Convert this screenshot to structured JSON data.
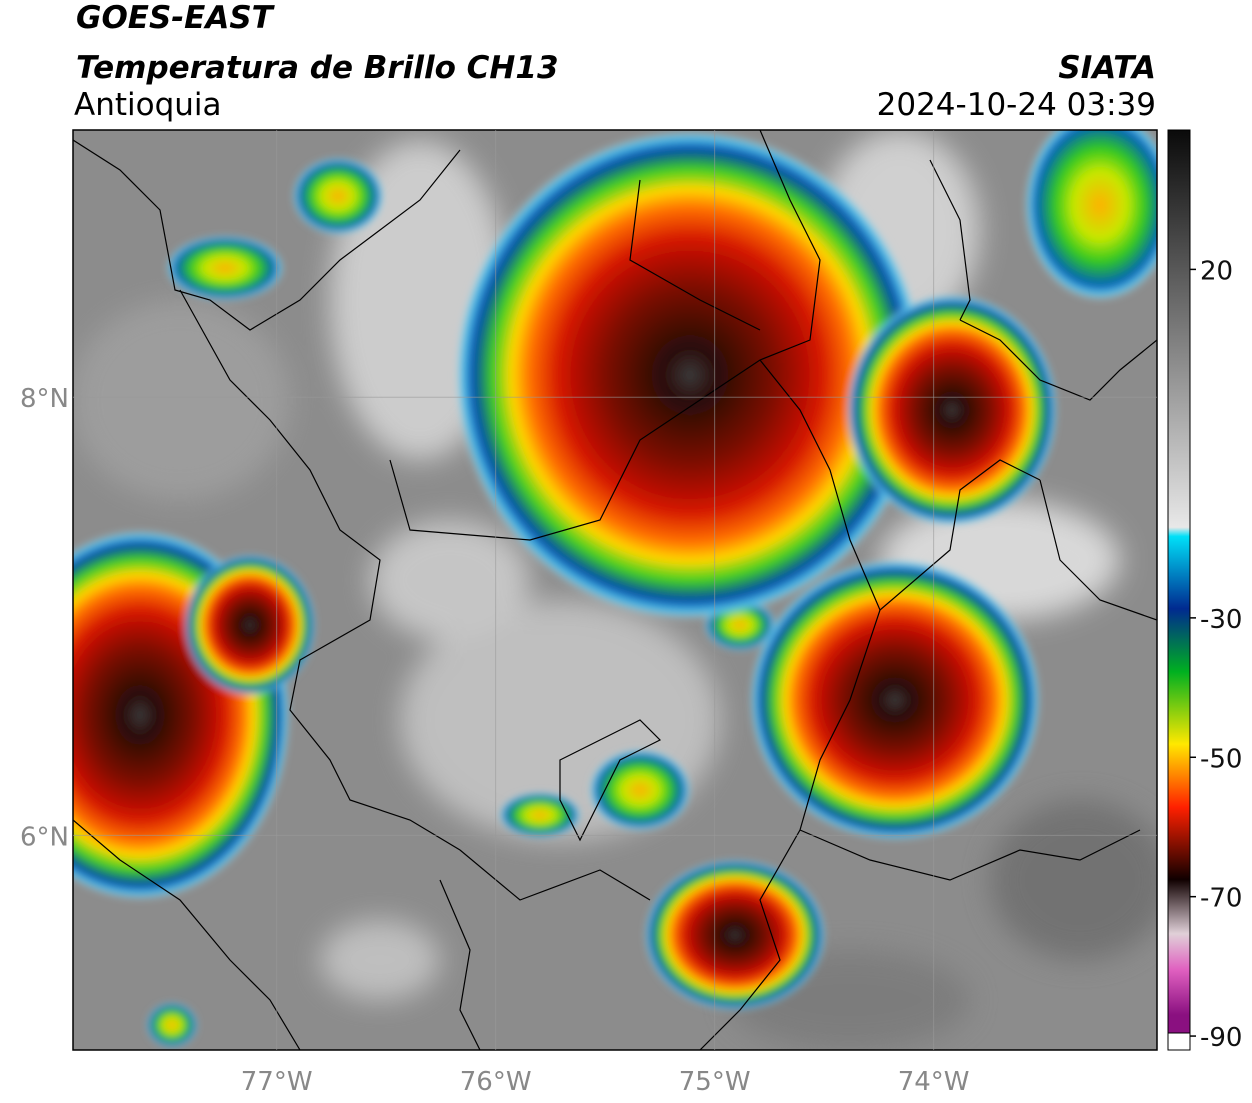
{
  "header": {
    "satellite": "GOES-EAST",
    "product": "Temperatura de Brillo CH13",
    "region": "Antioquia",
    "source": "SIATA",
    "datetime": "2024-10-24 03:39"
  },
  "map": {
    "xlim": [
      -77.93,
      -72.98
    ],
    "ylim": [
      5.02,
      9.22
    ],
    "xticks": [
      {
        "value": -77,
        "label": "77°W"
      },
      {
        "value": -76,
        "label": "76°W"
      },
      {
        "value": -75,
        "label": "75°W"
      },
      {
        "value": -74,
        "label": "74°W"
      }
    ],
    "yticks": [
      {
        "value": 8,
        "label": "8°N"
      },
      {
        "value": 6,
        "label": "6°N"
      }
    ],
    "grid": true
  },
  "colorbar": {
    "range": [
      -92,
      40
    ],
    "ticks": [
      20,
      -30,
      -50,
      -70,
      -90
    ]
  }
}
